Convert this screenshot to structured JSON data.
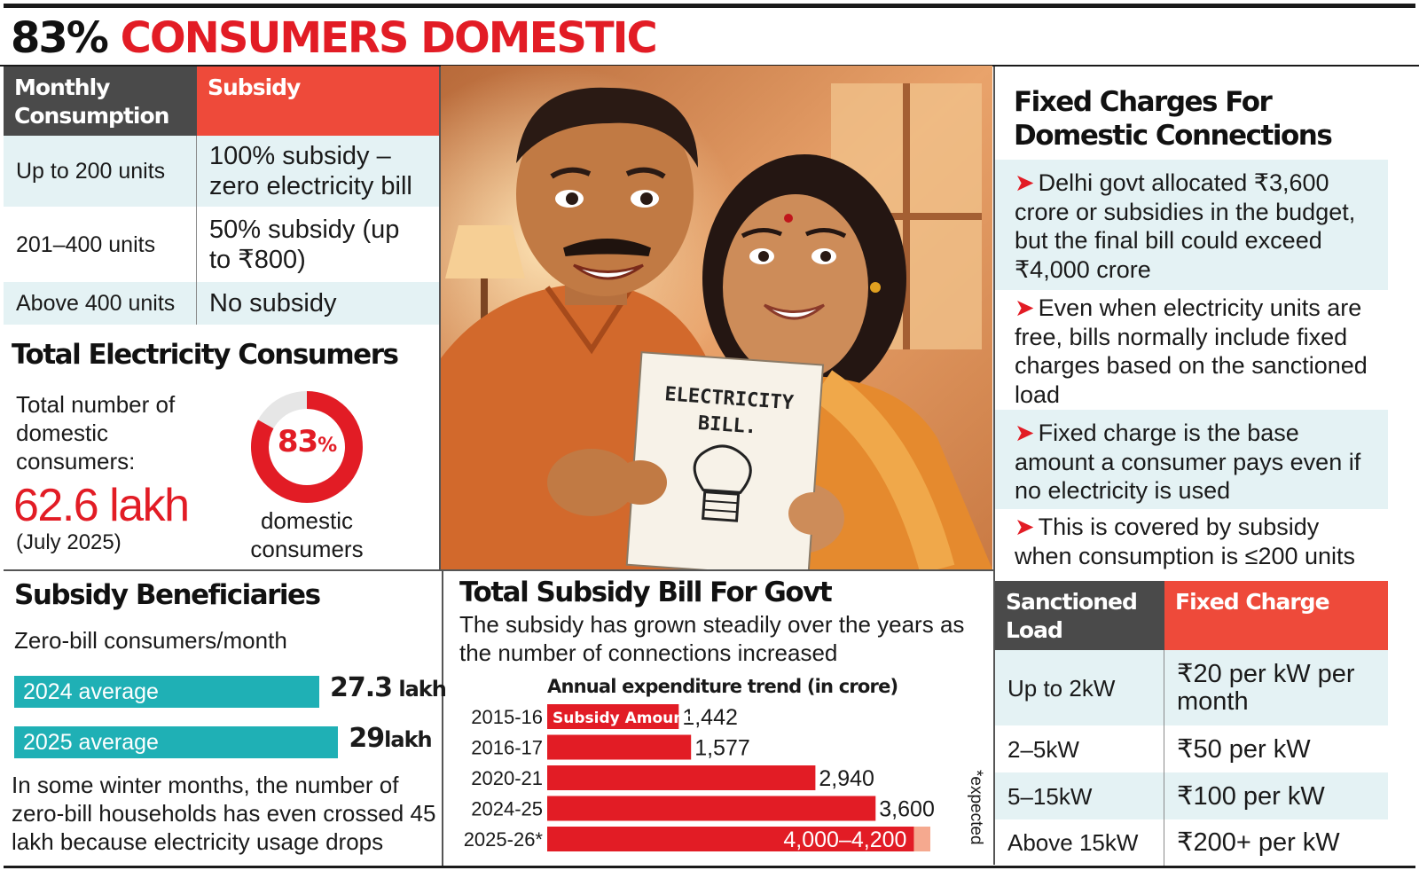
{
  "headline": {
    "percent": "83%",
    "text": "CONSUMERS DOMESTIC"
  },
  "subsidy_table": {
    "headers": [
      "Monthly Consumption",
      "Subsidy"
    ],
    "rows": [
      {
        "consumption": "Up to 200 units",
        "subsidy": "100% subsidy – zero electricity bill"
      },
      {
        "consumption": "201–400 units",
        "subsidy": "50% subsidy (up to ₹800)"
      },
      {
        "consumption": "Above 400 units",
        "subsidy": "No subsidy"
      }
    ]
  },
  "total_consumers": {
    "title": "Total Electricity Consumers",
    "label": "Total number of domestic consumers:",
    "value": "62.6 lakh",
    "date": "(July 2025)",
    "donut_value": "83",
    "donut_unit": "%",
    "donut_fraction": 0.83,
    "donut_label": "domestic consumers",
    "colors": {
      "accent": "#e21c25",
      "track": "#e6e6e6"
    }
  },
  "illustration": {
    "bill_text": "ELECTRICITY BILL."
  },
  "fixed_charges": {
    "title": "Fixed Charges For Domestic Connections",
    "points": [
      "Delhi govt allocated ₹3,600 crore or subsidies in the budget, but the final bill could exceed ₹4,000 crore",
      "Even when electricity units are free, bills normally include fixed charges based on the sanctioned load",
      "Fixed charge is the base amount a consumer pays even if no electricity is used",
      "This is covered by subsidy when consumption is ≤200 units"
    ],
    "table_headers": [
      "Sanctioned Load",
      "Fixed Charge"
    ],
    "table_rows": [
      {
        "load": "Up to 2kW",
        "charge": "₹20 per kW per month"
      },
      {
        "load": "2–5kW",
        "charge": "₹50 per kW"
      },
      {
        "load": "5–15kW",
        "charge": "₹100 per kW"
      },
      {
        "load": "Above 15kW",
        "charge": "₹200+ per kW"
      }
    ]
  },
  "beneficiaries": {
    "title": "Subsidy Beneficiaries",
    "subtitle": "Zero-bill consumers/month",
    "note": "In some winter months, the number of zero-bill households has even crossed 45 lakh because electricity usage drops"
  },
  "chart_data": [
    {
      "type": "bar",
      "orientation": "horizontal",
      "categories": [
        "2024 average",
        "2025 average"
      ],
      "values": [
        27.3,
        29
      ],
      "value_labels": [
        {
          "num": "27.3",
          "unit": "lakh"
        },
        {
          "num": "29",
          "unit": "lakh"
        }
      ],
      "title": "",
      "color": "#1fb0b5"
    },
    {
      "type": "bar",
      "orientation": "horizontal",
      "title": "Total Subsidy Bill For Govt",
      "subtitle": "The subsidy has grown steadily over the years as the number of connections increased",
      "chart_title": "Annual expenditure trend (in crore)",
      "categories": [
        "2015-16",
        "2016-17",
        "2020-21",
        "2024-25",
        "2025-26*"
      ],
      "series": [
        {
          "name": "Subsidy Amount",
          "values": [
            1442,
            1577,
            2940,
            3600,
            4100
          ]
        }
      ],
      "value_labels": [
        "1,442",
        "1,577",
        "2,940",
        "3,600",
        "4,000–4,200"
      ],
      "range_last": [
        4000,
        4200
      ],
      "footnote": "*expected",
      "color": "#e21c25",
      "range_color": "#f5a98f"
    }
  ]
}
